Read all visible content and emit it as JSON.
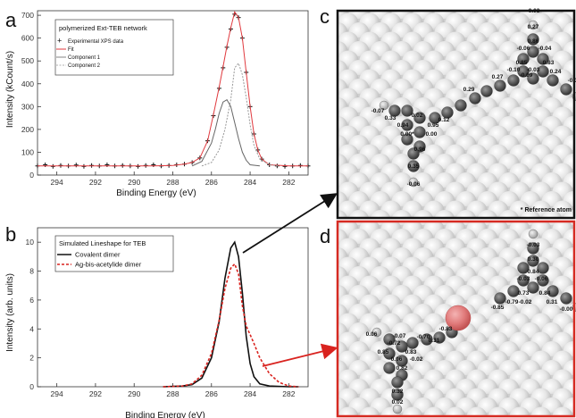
{
  "panels": {
    "a": {
      "letter": "a",
      "legend_title": "polymerized Ext-TEB network",
      "xlabel": "Binding Energy (eV)",
      "ylabel": "Intensity (kCount/s)"
    },
    "b": {
      "letter": "b",
      "legend_title": "Simulated Lineshape for TEB",
      "xlabel": "Binding Energy (eV)",
      "ylabel": "Intensity (arb. units)"
    },
    "c": {
      "letter": "c",
      "footnote": "* Reference atom",
      "charges": [
        "-0.03",
        "0.27",
        "0.86",
        "-0.06",
        "-0.04",
        "0.85",
        "0.83",
        "-0.10",
        "-0.03",
        "-0.09",
        "0.24",
        "0.27",
        "-0.05",
        "0.29",
        "-0.07",
        "0.02",
        "0.33",
        "0.12",
        "0.94",
        "0.95",
        "0.00*",
        "0.00",
        "0.96",
        "0.35",
        "-0.06"
      ]
    },
    "d": {
      "letter": "d",
      "charges": [
        "-0.03",
        "0.30",
        "0.84",
        "-0.03",
        "-0.06",
        "0.73",
        "0.84",
        "-0.79",
        "-0.02",
        "0.31",
        "-0.00",
        "-0.85",
        "-0.83",
        "0.06",
        "-0.07",
        "-0.72",
        "-0.70",
        "0.31",
        "0.85",
        "0.83",
        "0.06",
        "-0.02",
        "0.82",
        "0.32",
        "0.02"
      ]
    }
  },
  "colors": {
    "fit_red": "#e0393e",
    "dimer_black": "#111111",
    "ag_red": "#d9231f",
    "panel_c_border": "#111111",
    "panel_d_border": "#d62a22",
    "ag_atom": "#e07a7a"
  },
  "chart_data": [
    {
      "type": "line",
      "panel": "a",
      "xlabel": "Binding Energy (eV)",
      "ylabel": "Intensity (kCount/s)",
      "xlim": [
        295,
        281
      ],
      "ylim": [
        0,
        720
      ],
      "x_ticks": [
        294,
        292,
        290,
        288,
        286,
        284,
        282
      ],
      "y_ticks": [
        0,
        100,
        200,
        300,
        400,
        500,
        600,
        700
      ],
      "series": [
        {
          "name": "Experimental XPS data",
          "style": "cross-markers",
          "color": "#111111",
          "x": [
            295,
            294.6,
            294.2,
            293.8,
            293.4,
            293,
            292.6,
            292.2,
            291.8,
            291.4,
            291,
            290.6,
            290.2,
            289.8,
            289.4,
            289,
            288.6,
            288.2,
            287.8,
            287.4,
            287,
            286.6,
            286.2,
            285.9,
            285.6,
            285.4,
            285.2,
            285,
            284.8,
            284.6,
            284.4,
            284.2,
            284,
            283.8,
            283.6,
            283.4,
            283,
            282.6,
            282.2,
            281.8,
            281.4,
            281
          ],
          "y": [
            40,
            45,
            38,
            42,
            40,
            44,
            38,
            42,
            40,
            45,
            40,
            42,
            40,
            38,
            42,
            45,
            40,
            42,
            45,
            48,
            55,
            75,
            150,
            260,
            380,
            470,
            560,
            640,
            705,
            690,
            600,
            450,
            300,
            180,
            110,
            70,
            45,
            40,
            38,
            40,
            42,
            40
          ]
        },
        {
          "name": "Fit",
          "style": "line",
          "color": "#e0393e",
          "x": [
            295,
            293,
            291,
            289,
            288,
            287.4,
            287,
            286.6,
            286.2,
            285.9,
            285.6,
            285.4,
            285.2,
            285,
            284.8,
            284.6,
            284.4,
            284.2,
            284,
            283.8,
            283.6,
            283.4,
            283,
            282,
            281
          ],
          "y": [
            40,
            40,
            40,
            40,
            42,
            48,
            55,
            75,
            150,
            265,
            385,
            475,
            565,
            645,
            715,
            690,
            600,
            450,
            300,
            180,
            110,
            70,
            45,
            40,
            40
          ]
        },
        {
          "name": "Component 1",
          "style": "line",
          "color": "#666666",
          "x": [
            287,
            286.5,
            286,
            285.8,
            285.6,
            285.4,
            285.2,
            285,
            284.8,
            284.6,
            284.4,
            284.2,
            284,
            283.5
          ],
          "y": [
            40,
            60,
            140,
            200,
            270,
            320,
            330,
            300,
            230,
            160,
            100,
            65,
            45,
            40
          ]
        },
        {
          "name": "Component 2",
          "style": "line",
          "color": "#999999",
          "x": [
            286.5,
            286,
            285.6,
            285.3,
            285,
            284.8,
            284.6,
            284.4,
            284.2,
            284,
            283.8,
            283.5,
            283,
            282.5
          ],
          "y": [
            40,
            55,
            110,
            200,
            330,
            470,
            490,
            440,
            340,
            220,
            130,
            70,
            45,
            40
          ]
        }
      ]
    },
    {
      "type": "line",
      "panel": "b",
      "xlabel": "Binding Energy (eV)",
      "ylabel": "Intensity (arb. units)",
      "xlim": [
        295,
        281
      ],
      "ylim": [
        0,
        11
      ],
      "x_ticks": [
        294,
        292,
        290,
        288,
        286,
        284,
        282
      ],
      "y_ticks": [
        0,
        2,
        4,
        6,
        8,
        10
      ],
      "series": [
        {
          "name": "Covalent dimer",
          "style": "line",
          "color": "#111111",
          "x": [
            288.5,
            287.5,
            287,
            286.5,
            286,
            285.6,
            285.3,
            285,
            284.8,
            284.6,
            284.4,
            284.2,
            284,
            283.8,
            283.5,
            283,
            282,
            281.5
          ],
          "y": [
            0,
            0.05,
            0.15,
            0.6,
            2.0,
            4.5,
            7.5,
            9.6,
            10.0,
            9.0,
            6.5,
            3.5,
            1.6,
            0.7,
            0.2,
            0.05,
            0,
            0
          ]
        },
        {
          "name": "Ag-bis-acetylide dimer",
          "style": "dashed",
          "color": "#d9231f",
          "x": [
            288.5,
            287.5,
            287,
            286.5,
            286,
            285.6,
            285.3,
            285,
            284.8,
            284.6,
            284.4,
            284.2,
            284,
            283.8,
            283.5,
            283,
            282.5,
            282,
            281.5
          ],
          "y": [
            0,
            0.05,
            0.2,
            0.8,
            2.3,
            4.6,
            6.8,
            8.2,
            8.5,
            7.8,
            5.6,
            4.2,
            3.6,
            3.0,
            2.0,
            0.9,
            0.3,
            0.05,
            0
          ]
        }
      ]
    }
  ]
}
